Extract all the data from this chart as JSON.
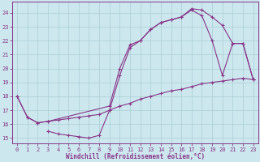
{
  "xlabel": "Windchill (Refroidissement éolien,°C)",
  "background_color": "#cce8ee",
  "grid_color": "#aaccd4",
  "line_color": "#883388",
  "xlim": [
    -0.5,
    23.5
  ],
  "ylim": [
    14.6,
    24.8
  ],
  "yticks": [
    15,
    16,
    17,
    18,
    19,
    20,
    21,
    22,
    23,
    24
  ],
  "xticks": [
    0,
    1,
    2,
    3,
    4,
    5,
    6,
    7,
    8,
    9,
    10,
    11,
    12,
    13,
    14,
    15,
    16,
    17,
    18,
    19,
    20,
    21,
    22,
    23
  ],
  "line1_x": [
    0,
    1,
    2,
    3,
    4,
    5,
    6,
    7,
    8,
    9,
    10,
    11,
    12,
    13,
    14,
    15,
    16,
    17,
    18,
    19,
    20,
    21,
    22,
    23
  ],
  "line1_y": [
    18.0,
    16.5,
    16.1,
    16.2,
    16.3,
    16.4,
    16.5,
    16.6,
    16.7,
    17.0,
    17.3,
    17.5,
    17.8,
    18.0,
    18.2,
    18.4,
    18.5,
    18.7,
    18.9,
    19.0,
    19.1,
    19.2,
    19.3,
    19.2
  ],
  "line2_x": [
    0,
    1,
    2,
    3,
    9,
    10,
    11,
    12,
    13,
    14,
    15,
    16,
    17,
    18,
    19,
    20,
    21,
    22,
    23
  ],
  "line2_y": [
    18.0,
    16.5,
    16.1,
    16.2,
    17.3,
    20.0,
    21.7,
    22.0,
    22.8,
    23.3,
    23.5,
    23.7,
    24.3,
    24.2,
    23.7,
    23.1,
    21.8,
    21.8,
    19.2
  ],
  "line3_x": [
    3,
    4,
    5,
    6,
    7,
    8,
    9,
    10,
    11,
    12,
    13,
    14,
    15,
    16,
    17,
    18,
    19,
    20,
    21,
    22,
    23
  ],
  "line3_y": [
    15.5,
    15.3,
    15.2,
    15.1,
    15.0,
    15.2,
    17.0,
    19.5,
    21.5,
    22.0,
    22.8,
    23.3,
    23.5,
    23.7,
    24.2,
    23.8,
    22.0,
    19.5,
    21.8,
    21.8,
    19.2
  ]
}
